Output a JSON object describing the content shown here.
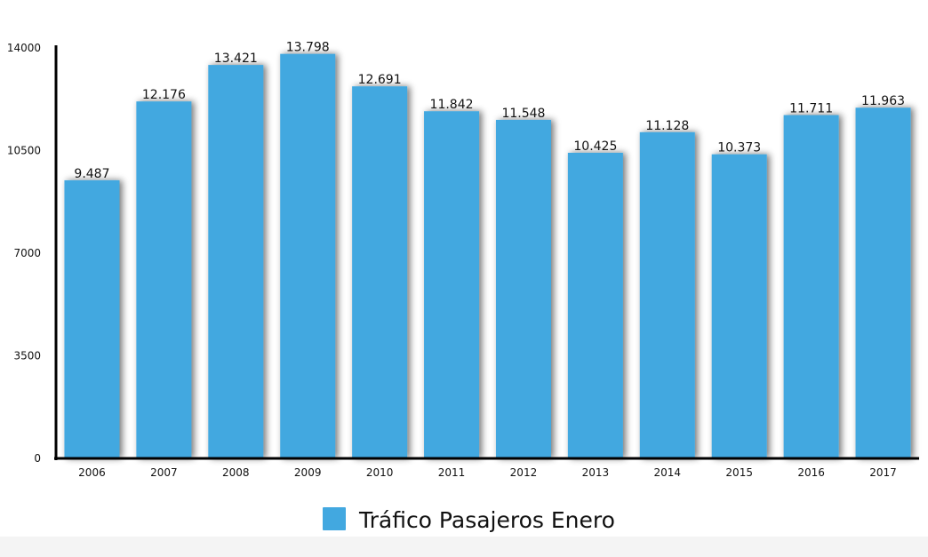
{
  "chart_data": {
    "type": "bar",
    "categories": [
      "2006",
      "2007",
      "2008",
      "2009",
      "2010",
      "2011",
      "2012",
      "2013",
      "2014",
      "2015",
      "2016",
      "2017"
    ],
    "series": [
      {
        "name": "Tráfico Pasajeros Enero",
        "values": [
          9487,
          12176,
          13421,
          13798,
          12691,
          11842,
          11548,
          10425,
          11128,
          10373,
          11711,
          11963
        ],
        "value_labels": [
          "9.487",
          "12.176",
          "13.421",
          "13.798",
          "12.691",
          "11.842",
          "11.548",
          "10.425",
          "11.128",
          "10.373",
          "11.711",
          "11.963"
        ],
        "color": "#42A8E0"
      }
    ],
    "yticks": [
      "0",
      "3500",
      "7000",
      "10500",
      "14000"
    ],
    "ytick_values": [
      0,
      3500,
      7000,
      10500,
      14000
    ],
    "ylim": [
      0,
      14000
    ],
    "grid": false,
    "legend_position": "bottom-center",
    "title": "",
    "xlabel": "",
    "ylabel": ""
  }
}
